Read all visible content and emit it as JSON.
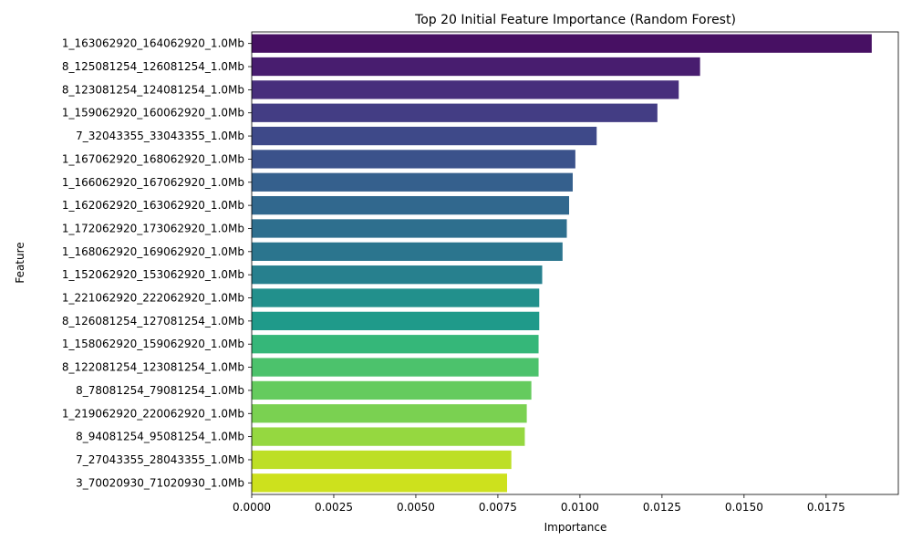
{
  "chart_data": {
    "type": "bar",
    "orientation": "horizontal",
    "title": "Top 20 Initial Feature Importance (Random Forest)",
    "xlabel": "Importance",
    "ylabel": "Feature",
    "xlim": [
      0,
      0.0197
    ],
    "xticks": [
      "0.0000",
      "0.0025",
      "0.0050",
      "0.0075",
      "0.0100",
      "0.0125",
      "0.0150",
      "0.0175"
    ],
    "xtick_values": [
      0,
      0.0025,
      0.005,
      0.0075,
      0.01,
      0.0125,
      0.015,
      0.0175
    ],
    "grid": false,
    "legend": "none",
    "palette": "viridis",
    "categories": [
      "1_163062920_164062920_1.0Mb",
      "8_125081254_126081254_1.0Mb",
      "8_123081254_124081254_1.0Mb",
      "1_159062920_160062920_1.0Mb",
      "7_32043355_33043355_1.0Mb",
      "1_167062920_168062920_1.0Mb",
      "1_166062920_167062920_1.0Mb",
      "1_162062920_163062920_1.0Mb",
      "1_172062920_173062920_1.0Mb",
      "1_168062920_169062920_1.0Mb",
      "1_152062920_153062920_1.0Mb",
      "1_221062920_222062920_1.0Mb",
      "8_126081254_127081254_1.0Mb",
      "1_158062920_159062920_1.0Mb",
      "8_122081254_123081254_1.0Mb",
      "8_78081254_79081254_1.0Mb",
      "1_219062920_220062920_1.0Mb",
      "8_94081254_95081254_1.0Mb",
      "7_27043355_28043355_1.0Mb",
      "3_70020930_71020930_1.0Mb"
    ],
    "values": [
      0.01889,
      0.01366,
      0.01301,
      0.01236,
      0.01051,
      0.00986,
      0.00978,
      0.00967,
      0.0096,
      0.00947,
      0.00885,
      0.00876,
      0.00876,
      0.00874,
      0.00874,
      0.00852,
      0.00838,
      0.00832,
      0.00791,
      0.00778
    ],
    "colors": [
      "#471063",
      "#481d6f",
      "#472e7c",
      "#433d84",
      "#3e4989",
      "#3b528b",
      "#35608d",
      "#31688e",
      "#2e6f8e",
      "#2b758e",
      "#27808e",
      "#22908c",
      "#1f9a8a",
      "#35b779",
      "#4cc26c",
      "#65cb5e",
      "#7ad151",
      "#95d840",
      "#bddf26",
      "#cde11d"
    ]
  }
}
